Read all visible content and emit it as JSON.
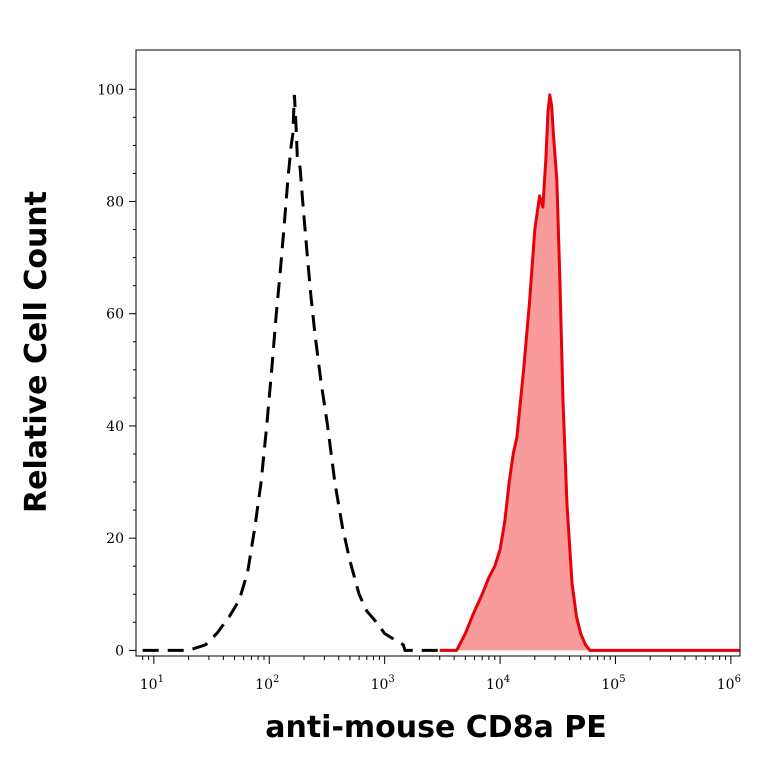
{
  "chart_data": {
    "type": "area",
    "title": "",
    "xlabel": "anti-mouse CD8a PE",
    "ylabel": "Relative Cell Count",
    "x_scale": "log",
    "xlim": [
      7,
      1200000
    ],
    "ylim": [
      -1,
      107
    ],
    "grid": false,
    "legend": "none",
    "x_ticks": [
      {
        "base": "10",
        "exp": "1",
        "value": 10
      },
      {
        "base": "10",
        "exp": "2",
        "value": 100
      },
      {
        "base": "10",
        "exp": "3",
        "value": 1000
      },
      {
        "base": "10",
        "exp": "4",
        "value": 10000
      },
      {
        "base": "10",
        "exp": "5",
        "value": 100000
      },
      {
        "base": "10",
        "exp": "6",
        "value": 1000000
      }
    ],
    "y_ticks": [
      {
        "label": "0",
        "value": 0
      },
      {
        "label": "20",
        "value": 20
      },
      {
        "label": "40",
        "value": 40
      },
      {
        "label": "60",
        "value": 60
      },
      {
        "label": "80",
        "value": 80
      },
      {
        "label": "100",
        "value": 100
      }
    ],
    "colors": {
      "control": "#000000",
      "stained_line": "#e8000b",
      "stained_fill": "#f99b9b",
      "axis": "#000000"
    },
    "series": [
      {
        "style": "dashed",
        "x": [
          8,
          20,
          28,
          35,
          45,
          55,
          65,
          75,
          85,
          95,
          105,
          115,
          125,
          135,
          145,
          155,
          160,
          165,
          170,
          175,
          185,
          195,
          210,
          230,
          250,
          280,
          320,
          370,
          430,
          500,
          600,
          700,
          850,
          1000,
          1200,
          1450,
          1500,
          3000
        ],
        "y": [
          0,
          0,
          1,
          3,
          6,
          9,
          14,
          22,
          30,
          40,
          50,
          60,
          68,
          76,
          84,
          90,
          92,
          99,
          94,
          88,
          86,
          80,
          72,
          63,
          56,
          48,
          40,
          30,
          22,
          16,
          10,
          7,
          5,
          3,
          2,
          1,
          0,
          0
        ]
      },
      {
        "style": "filled",
        "x": [
          3000,
          4200,
          5000,
          6000,
          7000,
          8000,
          9000,
          10000,
          11000,
          12000,
          13000,
          14000,
          16000,
          18000,
          20000,
          22000,
          23500,
          25000,
          26000,
          27000,
          28000,
          29000,
          31000,
          33000,
          35000,
          38000,
          42000,
          46000,
          50000,
          55000,
          60000,
          1200000
        ],
        "y": [
          0,
          0,
          3,
          7,
          10,
          13,
          15,
          18,
          23,
          30,
          35,
          38,
          50,
          62,
          75,
          81,
          79,
          88,
          96,
          99,
          97,
          92,
          84,
          66,
          45,
          26,
          12,
          6,
          3,
          1,
          0,
          0
        ]
      }
    ]
  }
}
